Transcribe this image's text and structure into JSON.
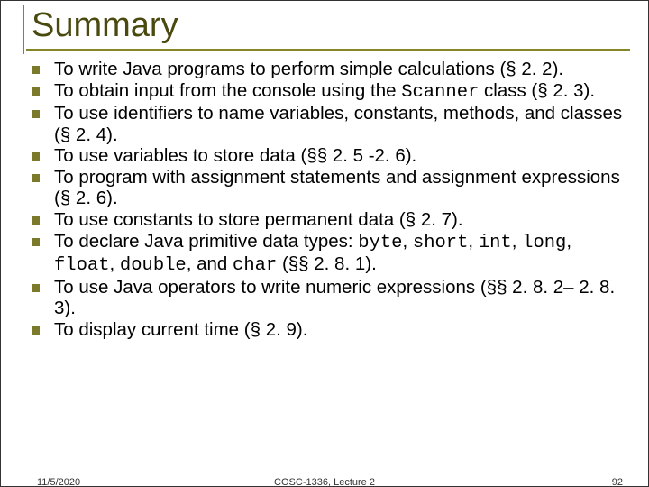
{
  "title": "Summary",
  "bullets": [
    {
      "pre": "To write Java programs to perform simple calculations (§ 2. 2)."
    },
    {
      "pre": "To obtain input from the console using the ",
      "mono": "Scanner",
      "post": " class (§ 2. 3)."
    },
    {
      "pre": "To use identifiers to name variables, constants, methods, and classes (§ 2. 4)."
    },
    {
      "pre": "To use variables to store data (§§ 2. 5 -2. 6)."
    },
    {
      "pre": "To program with assignment statements and assignment expressions (§ 2. 6)."
    },
    {
      "pre": "To use constants to store permanent data (§ 2. 7)."
    },
    {
      "pre": "To declare Java primitive data types: ",
      "mono": "byte",
      "post1": ", ",
      "mono2": "short",
      "post2": ", ",
      "mono3": "int",
      "post3": ", ",
      "mono4": "long",
      "post4": ", ",
      "mono5": "float",
      "post5": ", ",
      "mono6": "double",
      "post6": ", and ",
      "mono7": "char",
      "post7": " (§§ 2. 8. 1)."
    },
    {
      "pre": "To use Java operators to write numeric expressions (§§ 2. 8. 2– 2. 8. 3)."
    },
    {
      "pre": "To display current time (§ 2. 9)."
    }
  ],
  "footer": {
    "date": "11/5/2020",
    "center": "COSC-1336, Lecture 2",
    "page": "92"
  },
  "colors": {
    "accent": "#868626",
    "title": "#4a4a10",
    "bullet": "#7a7a2a"
  }
}
